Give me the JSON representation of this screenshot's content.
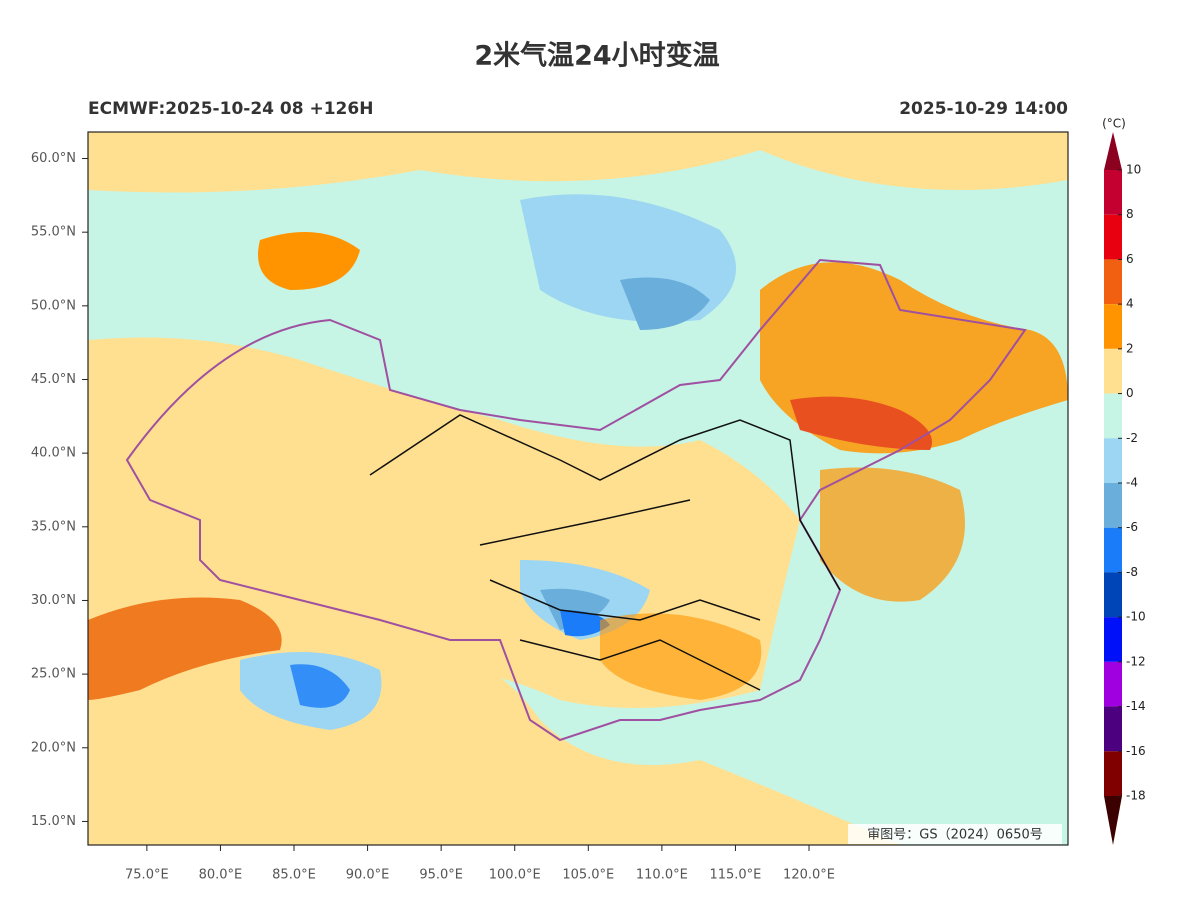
{
  "header": {
    "title": "2米气温24小时变温",
    "left_subtitle": "ECMWF:2025-10-24 08 +126H",
    "right_subtitle": "2025-10-29 14:00"
  },
  "map": {
    "xlim": [
      71.0,
      137.6
    ],
    "ylim": [
      13.4,
      61.8
    ],
    "xticks": [
      {
        "value": 75,
        "label": "75.0°E"
      },
      {
        "value": 80,
        "label": "80.0°E"
      },
      {
        "value": 85,
        "label": "85.0°E"
      },
      {
        "value": 90,
        "label": "90.0°E"
      },
      {
        "value": 95,
        "label": "95.0°E"
      },
      {
        "value": 100,
        "label": "100.0°E"
      },
      {
        "value": 105,
        "label": "105.0°E"
      },
      {
        "value": 110,
        "label": "110.0°E"
      },
      {
        "value": 115,
        "label": "115.0°E"
      },
      {
        "value": 120,
        "label": "120.0°E"
      }
    ],
    "yticks": [
      {
        "value": 60,
        "label": "60.0°N"
      },
      {
        "value": 55,
        "label": "55.0°N"
      },
      {
        "value": 50,
        "label": "50.0°N"
      },
      {
        "value": 45,
        "label": "45.0°N"
      },
      {
        "value": 40,
        "label": "40.0°N"
      },
      {
        "value": 35,
        "label": "35.0°N"
      },
      {
        "value": 30,
        "label": "30.0°N"
      },
      {
        "value": 25,
        "label": "25.0°N"
      },
      {
        "value": 20,
        "label": "20.0°N"
      },
      {
        "value": 15,
        "label": "15.0°N"
      }
    ],
    "approval": "审图号：GS（2024）0650号"
  },
  "colorbar": {
    "unit": "(°C)",
    "levels": [
      10,
      8,
      6,
      4,
      2,
      0,
      -2,
      -4,
      -6,
      -8,
      -10,
      -12,
      -14,
      -16,
      -18
    ],
    "colors": [
      "#c40030",
      "#e80010",
      "#f06010",
      "#ff9400",
      "#ffe090",
      "#c6f5e6",
      "#9dd6f2",
      "#6aaedc",
      "#1a7cf8",
      "#0045b8",
      "#0010f8",
      "#a000e0",
      "#4c0080",
      "#800000"
    ],
    "over_color": "#8c0020",
    "under_color": "#3c0000"
  }
}
